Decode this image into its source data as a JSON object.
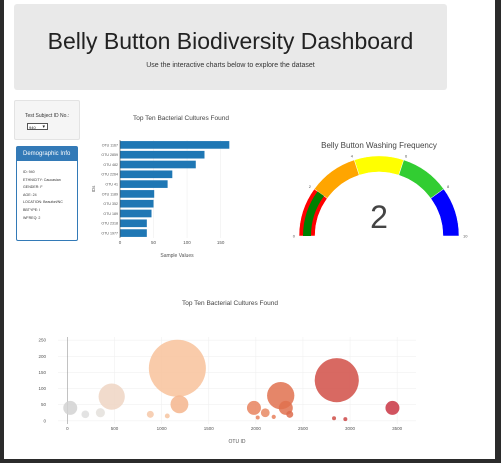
{
  "header": {
    "title": "Belly Button Biodiversity Dashboard",
    "subtitle": "Use the interactive charts below to explore the dataset"
  },
  "selector": {
    "label": "Test Subject ID No.:",
    "selected": "940"
  },
  "demographics": {
    "title": "Demographic Info",
    "rows": [
      "ID: 940",
      "ETHNICITY: Caucasian",
      "GENDER: F",
      "AGE: 24",
      "LOCATION: Beaufort/NC",
      "BBTYPE: I",
      "WFREQ: 2"
    ]
  },
  "chart_data": [
    {
      "type": "bar",
      "orientation": "horizontal",
      "title": "Top Ten Bacterial Cultures Found",
      "xlabel": "Sample Values",
      "ylabel": "IDs",
      "categories": [
        "OTU 1167",
        "OTU 2859",
        "OTU 482",
        "OTU 2264",
        "OTU 41",
        "OTU 1189",
        "OTU 352",
        "OTU 189",
        "OTU 2318",
        "OTU 1977"
      ],
      "values": [
        163,
        126,
        113,
        78,
        71,
        51,
        50,
        47,
        40,
        40
      ],
      "xlim": [
        0,
        170
      ],
      "xticks": [
        0,
        50,
        100,
        150
      ],
      "color": "#1f77b4"
    },
    {
      "type": "gauge",
      "title": "Belly Button Washing Frequency",
      "value": 2,
      "range": [
        0,
        10
      ],
      "tick_labels": [
        "0",
        "2",
        "4",
        "6",
        "8",
        "10"
      ],
      "bands": [
        {
          "from": 0,
          "to": 2,
          "color": "#ff0000"
        },
        {
          "from": 2,
          "to": 4,
          "color": "#ffa500"
        },
        {
          "from": 4,
          "to": 6,
          "color": "#ffff00"
        },
        {
          "from": 6,
          "to": 8,
          "color": "#32cd32"
        },
        {
          "from": 8,
          "to": 10,
          "color": "#0000ff"
        }
      ],
      "bar": {
        "value": 2,
        "color": "#008000"
      }
    },
    {
      "type": "scatter",
      "title": "Top Ten Bacterial Cultures Found",
      "xlabel": "OTU ID",
      "ylabel": "",
      "xlim": [
        -100,
        3700
      ],
      "ylim": [
        -10,
        260
      ],
      "xticks": [
        0,
        500,
        1000,
        1500,
        2000,
        2500,
        3000,
        3500
      ],
      "yticks": [
        0,
        50,
        100,
        150,
        200,
        250
      ],
      "points": [
        {
          "x": 30,
          "y": 40,
          "size": 40,
          "color": "#d2d2d2"
        },
        {
          "x": 190,
          "y": 20,
          "size": 22,
          "color": "#dedede"
        },
        {
          "x": 350,
          "y": 25,
          "size": 26,
          "color": "#e4e0dc"
        },
        {
          "x": 470,
          "y": 75,
          "size": 75,
          "color": "#eed5c3"
        },
        {
          "x": 880,
          "y": 20,
          "size": 20,
          "color": "#f6c8a8"
        },
        {
          "x": 1060,
          "y": 15,
          "size": 14,
          "color": "#f6c4a0"
        },
        {
          "x": 1167,
          "y": 163,
          "size": 163,
          "color": "#f8c29b"
        },
        {
          "x": 1189,
          "y": 51,
          "size": 51,
          "color": "#f5b58d"
        },
        {
          "x": 1980,
          "y": 40,
          "size": 40,
          "color": "#e8825e"
        },
        {
          "x": 2020,
          "y": 10,
          "size": 10,
          "color": "#e8825e"
        },
        {
          "x": 2100,
          "y": 25,
          "size": 25,
          "color": "#e88a64"
        },
        {
          "x": 2190,
          "y": 12,
          "size": 12,
          "color": "#e8805c"
        },
        {
          "x": 2264,
          "y": 78,
          "size": 78,
          "color": "#e0714f"
        },
        {
          "x": 2318,
          "y": 40,
          "size": 40,
          "color": "#e0714f"
        },
        {
          "x": 2360,
          "y": 20,
          "size": 20,
          "color": "#dd6b4c"
        },
        {
          "x": 2859,
          "y": 126,
          "size": 126,
          "color": "#d14f47"
        },
        {
          "x": 2830,
          "y": 8,
          "size": 8,
          "color": "#cf4d47"
        },
        {
          "x": 2950,
          "y": 5,
          "size": 5,
          "color": "#cc4646"
        },
        {
          "x": 3450,
          "y": 40,
          "size": 40,
          "color": "#c93543"
        }
      ]
    }
  ]
}
